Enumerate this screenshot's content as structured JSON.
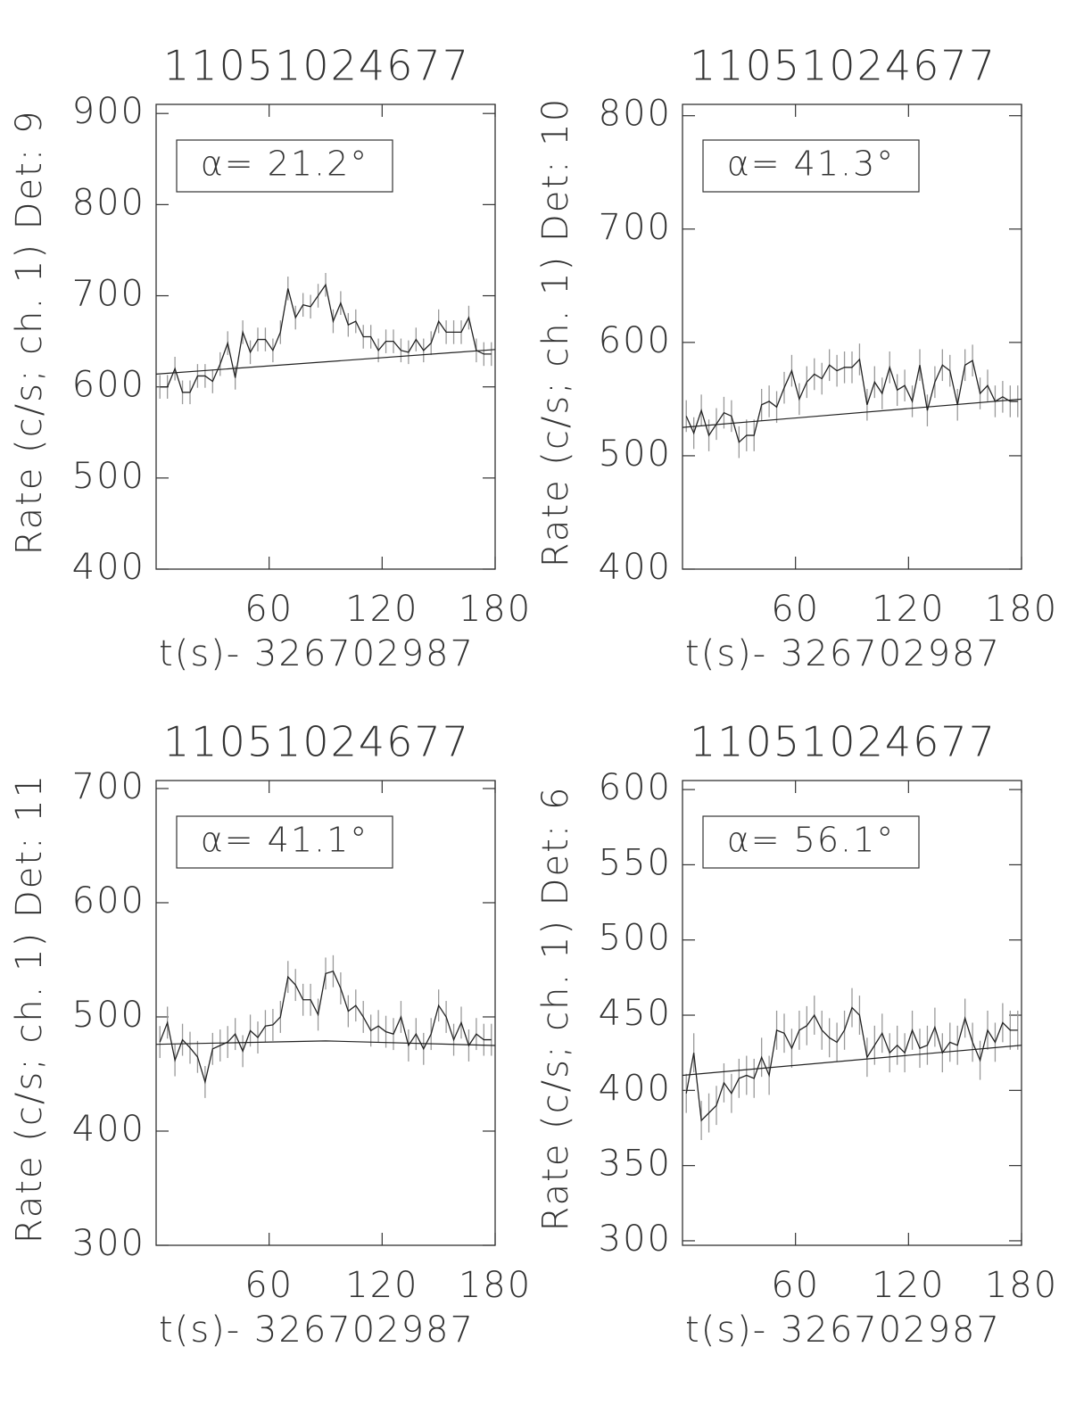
{
  "chart_data": [
    {
      "type": "line",
      "title": "11051024677",
      "xlabel": "t(s)- 326702987",
      "ylabel": "Rate (c/s; ch. 1) Det: 9",
      "annotation": "α= 21.2°",
      "xlim": [
        0,
        180
      ],
      "xticks": [
        60,
        120,
        180
      ],
      "ylim": [
        400,
        910
      ],
      "yticks": [
        400,
        500,
        600,
        700,
        800,
        900
      ],
      "x": [
        2,
        6,
        10,
        14,
        18,
        22,
        26,
        30,
        34,
        38,
        42,
        46,
        50,
        54,
        58,
        62,
        66,
        70,
        74,
        78,
        82,
        86,
        90,
        94,
        98,
        102,
        106,
        110,
        114,
        118,
        122,
        126,
        130,
        134,
        138,
        142,
        146,
        150,
        154,
        158,
        162,
        166,
        170,
        174,
        178
      ],
      "series": [
        {
          "color": "#222222",
          "values": [
            600,
            600,
            620,
            594,
            594,
            612,
            612,
            606,
            625,
            648,
            610,
            660,
            638,
            652,
            652,
            640,
            660,
            708,
            676,
            690,
            688,
            700,
            712,
            672,
            692,
            668,
            672,
            655,
            655,
            640,
            650,
            650,
            640,
            638,
            652,
            640,
            648,
            672,
            660,
            660,
            660,
            676,
            640,
            636,
            636
          ]
        }
      ],
      "error": 13,
      "fit": {
        "x": [
          0,
          180
        ],
        "values": [
          614,
          641
        ]
      }
    },
    {
      "type": "line",
      "title": "11051024677",
      "xlabel": "t(s)- 326702987",
      "ylabel": "Rate (c/s; ch. 1) Det: 10",
      "annotation": "α= 41.3°",
      "xlim": [
        0,
        180
      ],
      "xticks": [
        60,
        120,
        180
      ],
      "ylim": [
        400,
        810
      ],
      "yticks": [
        400,
        500,
        600,
        700,
        800
      ],
      "x": [
        2,
        6,
        10,
        14,
        18,
        22,
        26,
        30,
        34,
        38,
        42,
        46,
        50,
        54,
        58,
        62,
        66,
        70,
        74,
        78,
        82,
        86,
        90,
        94,
        98,
        102,
        106,
        110,
        114,
        118,
        122,
        126,
        130,
        134,
        138,
        142,
        146,
        150,
        154,
        158,
        162,
        166,
        170,
        174,
        178
      ],
      "series": [
        {
          "color": "#222222",
          "values": [
            535,
            520,
            540,
            518,
            528,
            538,
            535,
            512,
            518,
            518,
            545,
            548,
            543,
            560,
            575,
            550,
            565,
            572,
            568,
            580,
            575,
            578,
            578,
            585,
            545,
            565,
            555,
            578,
            558,
            562,
            548,
            580,
            540,
            565,
            580,
            575,
            545,
            580,
            584,
            555,
            562,
            548,
            552,
            548,
            548
          ]
        }
      ],
      "error": 14,
      "fit": {
        "x": [
          0,
          180
        ],
        "values": [
          525,
          550
        ]
      }
    },
    {
      "type": "line",
      "title": "11051024677",
      "xlabel": "t(s)- 326702987",
      "ylabel": "Rate (c/s; ch. 1) Det: 11",
      "annotation": "α= 41.1°",
      "xlim": [
        0,
        180
      ],
      "xticks": [
        60,
        120,
        180
      ],
      "ylim": [
        300,
        707
      ],
      "yticks": [
        300,
        400,
        500,
        600,
        700
      ],
      "x": [
        2,
        6,
        10,
        14,
        18,
        22,
        26,
        30,
        34,
        38,
        42,
        46,
        50,
        54,
        58,
        62,
        66,
        70,
        74,
        78,
        82,
        86,
        90,
        94,
        98,
        102,
        106,
        110,
        114,
        118,
        122,
        126,
        130,
        134,
        138,
        142,
        146,
        150,
        154,
        158,
        162,
        166,
        170,
        174,
        178
      ],
      "series": [
        {
          "color": "#222222",
          "values": [
            478,
            495,
            462,
            480,
            473,
            465,
            443,
            472,
            475,
            478,
            485,
            470,
            488,
            482,
            492,
            493,
            500,
            535,
            528,
            515,
            515,
            502,
            538,
            540,
            525,
            505,
            510,
            500,
            488,
            492,
            487,
            485,
            500,
            475,
            485,
            472,
            485,
            510,
            500,
            480,
            495,
            475,
            485,
            480,
            480
          ]
        }
      ],
      "error": 14,
      "fit": {
        "x": [
          0,
          90,
          180
        ],
        "values": [
          476,
          479,
          475
        ]
      }
    },
    {
      "type": "line",
      "title": "11051024677",
      "xlabel": "t(s)- 326702987",
      "ylabel": "Rate (c/s; ch. 1) Det: 6",
      "annotation": "α= 56.1°",
      "xlim": [
        0,
        180
      ],
      "xticks": [
        60,
        120,
        180
      ],
      "ylim": [
        297,
        606
      ],
      "yticks": [
        300,
        350,
        400,
        450,
        500,
        550,
        600
      ],
      "x": [
        2,
        6,
        10,
        14,
        18,
        22,
        26,
        30,
        34,
        38,
        42,
        46,
        50,
        54,
        58,
        62,
        66,
        70,
        74,
        78,
        82,
        86,
        90,
        94,
        98,
        102,
        106,
        110,
        114,
        118,
        122,
        126,
        130,
        134,
        138,
        142,
        146,
        150,
        154,
        158,
        162,
        166,
        170,
        174,
        178
      ],
      "series": [
        {
          "color": "#222222",
          "values": [
            398,
            425,
            380,
            385,
            390,
            405,
            398,
            408,
            410,
            408,
            422,
            410,
            440,
            438,
            428,
            440,
            443,
            450,
            440,
            435,
            432,
            440,
            455,
            450,
            422,
            430,
            438,
            425,
            430,
            425,
            440,
            428,
            430,
            442,
            425,
            432,
            430,
            448,
            432,
            420,
            440,
            432,
            445,
            440,
            440
          ]
        }
      ],
      "error": 13,
      "fit": {
        "x": [
          0,
          180
        ],
        "values": [
          410,
          430
        ]
      }
    }
  ]
}
